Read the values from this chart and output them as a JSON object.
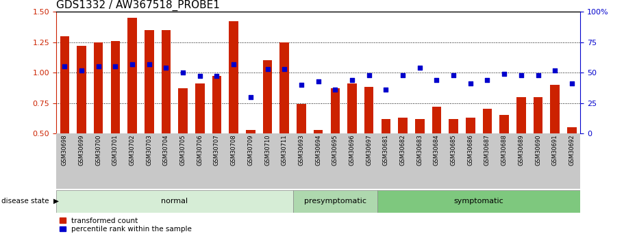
{
  "title": "GDS1332 / AW367518_PROBE1",
  "samples": [
    "GSM30698",
    "GSM30699",
    "GSM30700",
    "GSM30701",
    "GSM30702",
    "GSM30703",
    "GSM30704",
    "GSM30705",
    "GSM30706",
    "GSM30707",
    "GSM30708",
    "GSM30709",
    "GSM30710",
    "GSM30711",
    "GSM30693",
    "GSM30694",
    "GSM30695",
    "GSM30696",
    "GSM30697",
    "GSM30681",
    "GSM30682",
    "GSM30683",
    "GSM30684",
    "GSM30685",
    "GSM30686",
    "GSM30687",
    "GSM30688",
    "GSM30689",
    "GSM30690",
    "GSM30691",
    "GSM30692"
  ],
  "bar_values": [
    1.3,
    1.22,
    1.25,
    1.26,
    1.45,
    1.35,
    1.35,
    0.87,
    0.91,
    0.97,
    1.42,
    0.53,
    1.1,
    1.25,
    0.74,
    0.53,
    0.87,
    0.91,
    0.88,
    0.62,
    0.63,
    0.62,
    0.72,
    0.62,
    0.63,
    0.7,
    0.65,
    0.8,
    0.8,
    0.9,
    0.55
  ],
  "percentile_values": [
    55,
    52,
    55,
    55,
    57,
    57,
    54,
    50,
    47,
    47,
    57,
    30,
    53,
    53,
    40,
    43,
    36,
    44,
    48,
    36,
    48,
    54,
    44,
    48,
    41,
    44,
    49,
    48,
    48,
    52,
    41
  ],
  "groups": [
    {
      "label": "normal",
      "start": 0,
      "end": 13,
      "color": "#d6edd6"
    },
    {
      "label": "presymptomatic",
      "start": 14,
      "end": 18,
      "color": "#aed8ae"
    },
    {
      "label": "symptomatic",
      "start": 19,
      "end": 30,
      "color": "#7ec87e"
    }
  ],
  "bar_color": "#cc2200",
  "dot_color": "#0000cc",
  "bar_bottom": 0.5,
  "ylim_left": [
    0.5,
    1.5
  ],
  "ylim_right": [
    0,
    100
  ],
  "yticks_left": [
    0.5,
    0.75,
    1.0,
    1.25,
    1.5
  ],
  "yticks_right": [
    0,
    25,
    50,
    75,
    100
  ],
  "title_fontsize": 11,
  "legend_bar_label": "transformed count",
  "legend_dot_label": "percentile rank within the sample",
  "disease_state_label": "disease state",
  "background_color": "#ffffff"
}
